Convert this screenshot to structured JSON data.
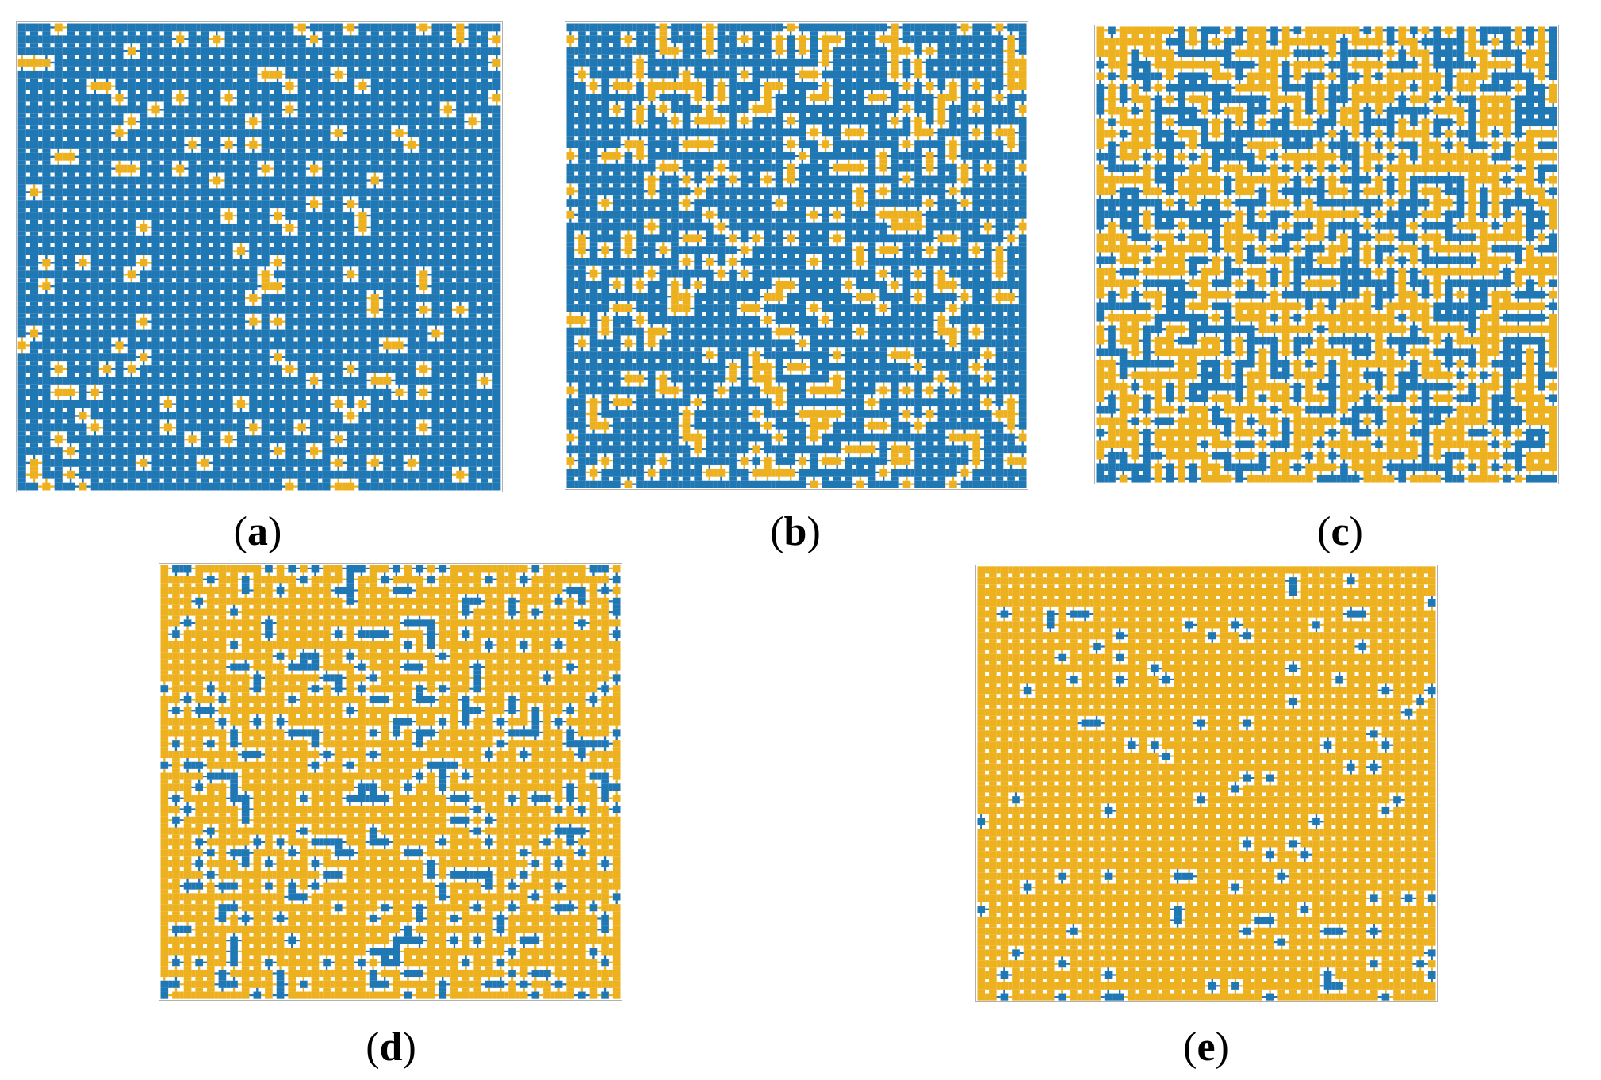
{
  "colors": {
    "blue": "#1f77b4",
    "yellow": "#edb120",
    "grid": "#ffffff",
    "frame": "#b0b0b0"
  },
  "panels": [
    {
      "id": "a",
      "caption_letter": "a",
      "yellow_fraction": 0.08,
      "seed": 11
    },
    {
      "id": "b",
      "caption_letter": "b",
      "yellow_fraction": 0.22,
      "seed": 23
    },
    {
      "id": "c",
      "caption_letter": "c",
      "yellow_fraction": 0.52,
      "seed": 37
    },
    {
      "id": "d",
      "caption_letter": "d",
      "yellow_fraction": 0.8,
      "seed": 41
    },
    {
      "id": "e",
      "caption_letter": "e",
      "yellow_fraction": 0.93,
      "seed": 53
    }
  ]
}
